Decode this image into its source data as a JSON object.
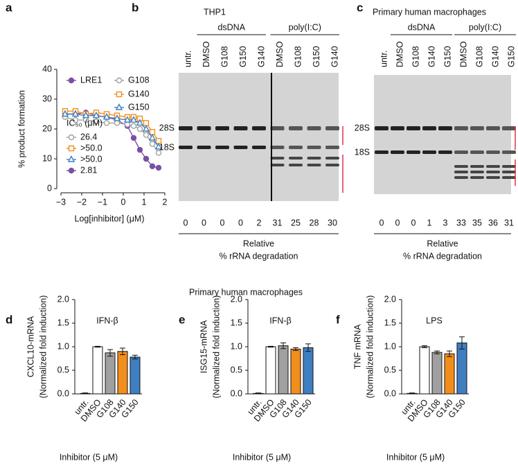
{
  "chart_data": [
    {
      "type": "line",
      "panel": "a",
      "xlabel": "Log[inhibitor] (μM)",
      "ylabel": "% product formation",
      "xlim": [
        -3,
        2
      ],
      "xticks": [
        {
          "value": -3,
          "label": "−3"
        },
        {
          "value": -2,
          "label": "−2"
        },
        {
          "value": -1,
          "label": "−1"
        },
        0,
        1,
        2
      ],
      "ylim": [
        0,
        40
      ],
      "yticks": [
        0,
        10,
        20,
        30,
        40
      ],
      "x": [
        -2.8,
        -2.3,
        -1.8,
        -1.3,
        -0.8,
        -0.3,
        0.2,
        0.5,
        0.8,
        1.1,
        1.4,
        1.7
      ],
      "ic50_title": "IC₅₀ (μM)",
      "series": [
        {
          "name": "LRE1",
          "color": "#7b4fa6",
          "marker": "circle",
          "ic50": "2.81",
          "values": [
            25,
            25,
            25.5,
            24.5,
            24,
            23,
            21,
            17,
            13,
            10,
            7.5,
            7
          ]
        },
        {
          "name": "G108",
          "color": "#a0a0a0",
          "marker": "circle-open",
          "ic50": "26.4",
          "values": [
            24,
            23,
            23,
            22.5,
            22,
            22,
            21.5,
            21,
            20,
            18,
            15,
            12
          ]
        },
        {
          "name": "G140",
          "color": "#f28e1c",
          "marker": "square-open",
          "ic50": ">50.0",
          "values": [
            26,
            26,
            25,
            25.5,
            25,
            24.5,
            24,
            24,
            23.5,
            22,
            19,
            16
          ]
        },
        {
          "name": "G150",
          "color": "#3f7fc1",
          "marker": "triangle-open",
          "ic50": ">50.0",
          "values": [
            25,
            25,
            24.5,
            24.5,
            24,
            23.5,
            23,
            23,
            22,
            20,
            17,
            14
          ]
        }
      ]
    },
    {
      "type": "bar",
      "panel": "d",
      "title": "IFN-β",
      "ylabel": [
        "CXCL10-mRNA",
        "(Normalized fold induction)"
      ],
      "xlabel": "Inhibitor (5 μM)",
      "categories": [
        "untr.",
        "DMSO",
        "G108",
        "G140",
        "G150"
      ],
      "colors": [
        "#ffffff",
        "#ffffff",
        "#a0a0a0",
        "#f28e1c",
        "#3f7fc1"
      ],
      "values": [
        0.01,
        1.0,
        0.87,
        0.9,
        0.78
      ],
      "errors": [
        0.01,
        0.01,
        0.07,
        0.07,
        0.04
      ],
      "ylim": [
        0,
        2
      ],
      "yticks": [
        {
          "value": 0,
          "label": "0.0"
        },
        0.5,
        {
          "value": 1,
          "label": "1.0"
        },
        1.5,
        {
          "value": 2,
          "label": "2.0"
        }
      ]
    },
    {
      "type": "bar",
      "panel": "e",
      "title": "IFN-β",
      "ylabel": [
        "ISG15-mRNA",
        "(Normalized fold induction)"
      ],
      "xlabel": "Inhibitor (5 μM)",
      "categories": [
        "untr.",
        "DMSO",
        "G108",
        "G140",
        "G150"
      ],
      "colors": [
        "#ffffff",
        "#ffffff",
        "#a0a0a0",
        "#f28e1c",
        "#3f7fc1"
      ],
      "values": [
        0.01,
        1.0,
        1.02,
        0.95,
        0.98
      ],
      "errors": [
        0.01,
        0.01,
        0.06,
        0.03,
        0.08
      ],
      "ylim": [
        0,
        2
      ],
      "yticks": [
        {
          "value": 0,
          "label": "0.0"
        },
        0.5,
        {
          "value": 1,
          "label": "1.0"
        },
        1.5,
        {
          "value": 2,
          "label": "2.0"
        }
      ]
    },
    {
      "type": "bar",
      "panel": "f",
      "title": "LPS",
      "ylabel": [
        "TNF mRNA",
        "(Normalized fold induction)"
      ],
      "xlabel": "Inhibitor (5 μM)",
      "categories": [
        "untr.",
        "DMSO",
        "G108",
        "G140",
        "G150"
      ],
      "colors": [
        "#ffffff",
        "#ffffff",
        "#a0a0a0",
        "#f28e1c",
        "#3f7fc1"
      ],
      "values": [
        0.01,
        1.0,
        0.88,
        0.85,
        1.08
      ],
      "errors": [
        0.01,
        0.02,
        0.03,
        0.06,
        0.13
      ],
      "ylim": [
        0,
        2
      ],
      "yticks": [
        {
          "value": 0,
          "label": "0.0"
        },
        0.5,
        {
          "value": 1,
          "label": "1.0"
        },
        1.5,
        {
          "value": 2,
          "label": "2.0"
        }
      ]
    }
  ],
  "group_title": "Primary human macrophages",
  "gels": [
    {
      "panel": "b",
      "title": "THP1",
      "groups": [
        "dsDNA",
        "poly(I:C)"
      ],
      "lanes": [
        "untr.",
        "DMSO",
        "G108",
        "G150",
        "G140",
        "DMSO",
        "G108",
        "G150",
        "G140"
      ],
      "bands": [
        "28S",
        "18S"
      ],
      "degradation": [
        0,
        0,
        0,
        0,
        2,
        31,
        25,
        28,
        30
      ],
      "caption": [
        "Relative",
        "% rRNA degradation"
      ]
    },
    {
      "panel": "c",
      "title": "Primary human macrophages",
      "groups": [
        "dsDNA",
        "poly(I:C)"
      ],
      "lanes": [
        "untr.",
        "DMSO",
        "G108",
        "G140",
        "G150",
        "DMSO",
        "G108",
        "G140",
        "G150"
      ],
      "bands": [
        "28S",
        "18S"
      ],
      "degradation": [
        0,
        0,
        0,
        1,
        3,
        33,
        35,
        36,
        31
      ],
      "caption": [
        "Relative",
        "% rRNA degradation"
      ]
    }
  ]
}
